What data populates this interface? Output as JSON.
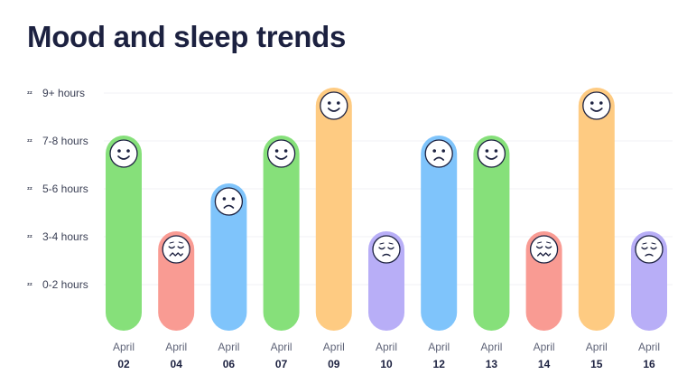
{
  "page": {
    "title": "Mood and sleep trends"
  },
  "chart_data": {
    "type": "bar",
    "title": "Mood and sleep trends",
    "xlabel": "",
    "ylabel": "",
    "y_categories": [
      "0-2 hours",
      "3-4 hours",
      "5-6 hours",
      "7-8 hours",
      "9+ hours"
    ],
    "y_icon": "zz-sleep-icon",
    "categories": [
      {
        "month": "April",
        "day": "02"
      },
      {
        "month": "April",
        "day": "04"
      },
      {
        "month": "April",
        "day": "06"
      },
      {
        "month": "April",
        "day": "07"
      },
      {
        "month": "April",
        "day": "09"
      },
      {
        "month": "April",
        "day": "10"
      },
      {
        "month": "April",
        "day": "12"
      },
      {
        "month": "April",
        "day": "13"
      },
      {
        "month": "April",
        "day": "14"
      },
      {
        "month": "April",
        "day": "15"
      },
      {
        "month": "April",
        "day": "16"
      }
    ],
    "values": [
      "7-8 hours",
      "3-4 hours",
      "5-6 hours",
      "7-8 hours",
      "9+ hours",
      "3-4 hours",
      "7-8 hours",
      "7-8 hours",
      "3-4 hours",
      "9+ hours",
      "3-4 hours"
    ],
    "moods": [
      "happy",
      "anxious",
      "sad",
      "happy",
      "happy",
      "tired",
      "sad",
      "happy",
      "anxious",
      "happy",
      "tired"
    ],
    "mood_colors": {
      "happy": "#86e07a",
      "anxious": "#f99b93",
      "sad": "#7fc4fb",
      "tired": "#b8aef7"
    },
    "special_colors": {
      "9+ hours": "#fecb82"
    },
    "grid": true
  }
}
